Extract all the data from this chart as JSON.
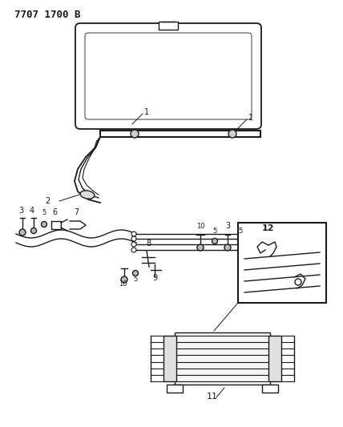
{
  "title": "7707 1700 B",
  "bg_color": "#ffffff",
  "line_color": "#1a1a1a",
  "title_fontsize": 9,
  "fig_width": 4.28,
  "fig_height": 5.33,
  "dpi": 100
}
